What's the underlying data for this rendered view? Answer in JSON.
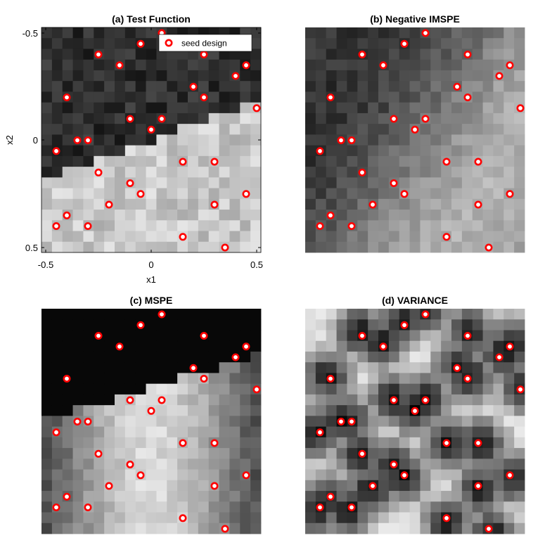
{
  "chart_data": [
    {
      "type": "heatmap",
      "title": "(a) Test Function",
      "xlabel": "x1",
      "ylabel": "x2",
      "xlim": [
        -0.5,
        0.5
      ],
      "ylim": [
        -0.5,
        0.5
      ],
      "y_reversed": true,
      "xticks": [
        "-0.5",
        "0",
        "0.5"
      ],
      "yticks": [
        "-0.5",
        "0",
        "0.5"
      ],
      "legend": {
        "label": "seed design",
        "placement": "top-right"
      },
      "colormap": "gray"
    },
    {
      "type": "heatmap",
      "title": "(b) Negative IMSPE",
      "colormap": "gray"
    },
    {
      "type": "heatmap",
      "title": "(c) MSPE",
      "colormap": "gray"
    },
    {
      "type": "heatmap",
      "title": "(d) VARIANCE",
      "colormap": "gray"
    }
  ],
  "seed_design": {
    "marker_color": "#ff0000",
    "points": [
      [
        0.05,
        -0.5
      ],
      [
        -0.05,
        -0.45
      ],
      [
        -0.25,
        -0.4
      ],
      [
        0.25,
        -0.4
      ],
      [
        -0.15,
        -0.35
      ],
      [
        0.45,
        -0.35
      ],
      [
        0.4,
        -0.3
      ],
      [
        0.2,
        -0.25
      ],
      [
        -0.4,
        -0.2
      ],
      [
        0.25,
        -0.2
      ],
      [
        0.5,
        -0.15
      ],
      [
        -0.1,
        -0.1
      ],
      [
        0.05,
        -0.1
      ],
      [
        0.0,
        -0.05
      ],
      [
        -0.35,
        0.0
      ],
      [
        -0.3,
        0.0
      ],
      [
        -0.45,
        0.05
      ],
      [
        0.15,
        0.1
      ],
      [
        0.3,
        0.1
      ],
      [
        -0.25,
        0.15
      ],
      [
        -0.1,
        0.2
      ],
      [
        -0.05,
        0.25
      ],
      [
        0.45,
        0.25
      ],
      [
        -0.2,
        0.3
      ],
      [
        0.3,
        0.3
      ],
      [
        -0.4,
        0.35
      ],
      [
        -0.45,
        0.4
      ],
      [
        -0.3,
        0.4
      ],
      [
        0.15,
        0.45
      ],
      [
        0.35,
        0.5
      ]
    ]
  }
}
